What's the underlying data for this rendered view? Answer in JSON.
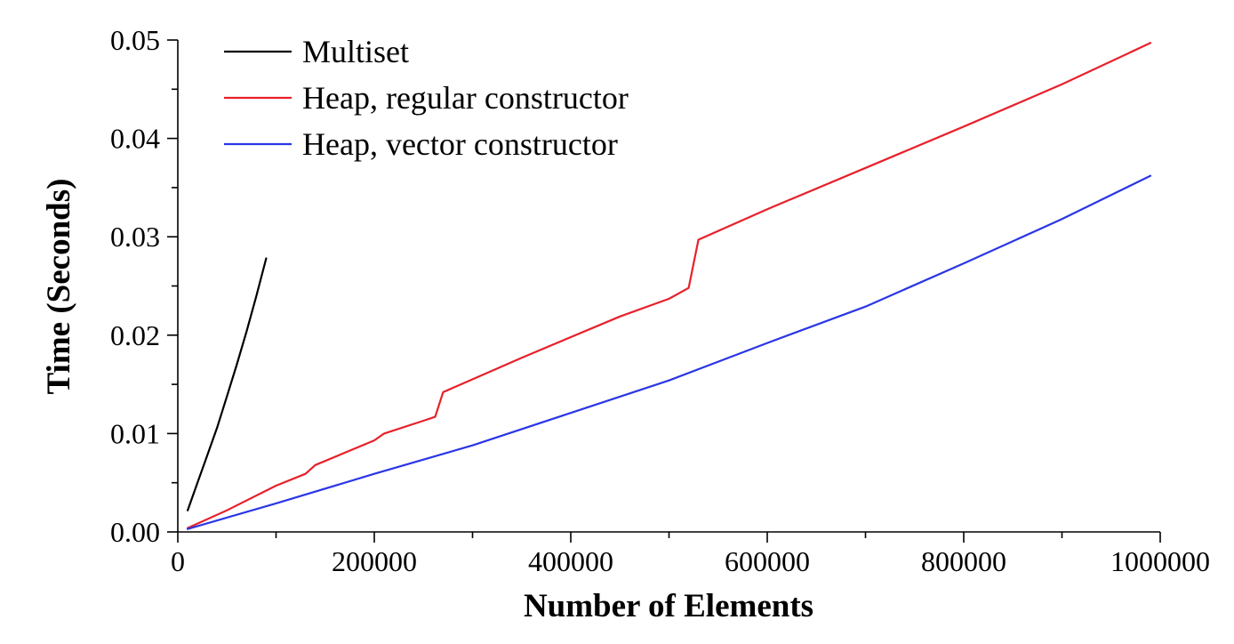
{
  "chart_data": {
    "type": "line",
    "xlabel": "Number of Elements",
    "ylabel": "Time (Seconds)",
    "xlim": [
      0,
      1000000
    ],
    "ylim": [
      0,
      0.05
    ],
    "xticks": [
      0,
      200000,
      400000,
      600000,
      800000,
      1000000
    ],
    "xtick_labels": [
      "0",
      "200000",
      "400000",
      "600000",
      "800000",
      "1000000"
    ],
    "yticks": [
      0,
      0.01,
      0.02,
      0.03,
      0.04,
      0.05
    ],
    "ytick_labels": [
      "0.00",
      "0.01",
      "0.02",
      "0.03",
      "0.04",
      "0.05"
    ],
    "grid": false,
    "legend_position": "top-left",
    "series": [
      {
        "name": "Multiset",
        "color": "#000000",
        "x": [
          10000,
          20000,
          30000,
          40000,
          50000,
          60000,
          70000,
          80000,
          90000
        ],
        "y": [
          0.0022,
          0.005,
          0.0078,
          0.0106,
          0.0138,
          0.017,
          0.0204,
          0.024,
          0.0278
        ]
      },
      {
        "name": "Heap, regular constructor",
        "color": "#e8202a",
        "x": [
          10000,
          50000,
          100000,
          130000,
          140000,
          200000,
          210000,
          250000,
          262000,
          270000,
          350000,
          450000,
          500000,
          520000,
          530000,
          600000,
          700000,
          800000,
          900000,
          990000
        ],
        "y": [
          0.0004,
          0.0022,
          0.0047,
          0.0059,
          0.0068,
          0.0093,
          0.01,
          0.0113,
          0.0117,
          0.0142,
          0.0177,
          0.0219,
          0.0237,
          0.0248,
          0.0297,
          0.0328,
          0.037,
          0.0412,
          0.0455,
          0.0497
        ]
      },
      {
        "name": "Heap, vector constructor",
        "color": "#2a36e6",
        "x": [
          10000,
          100000,
          200000,
          300000,
          400000,
          500000,
          600000,
          700000,
          800000,
          900000,
          990000
        ],
        "y": [
          0.0003,
          0.0029,
          0.0059,
          0.0088,
          0.0121,
          0.0154,
          0.0192,
          0.0229,
          0.0273,
          0.0318,
          0.0362
        ]
      }
    ]
  }
}
